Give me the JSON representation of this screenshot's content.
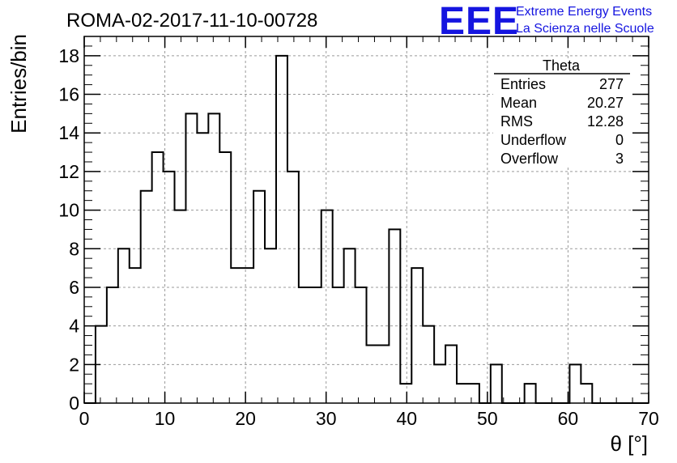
{
  "chart_data": {
    "type": "bar",
    "title": "ROMA-02-2017-11-10-00728",
    "xlabel": "θ [°]",
    "ylabel": "Entries/bin",
    "xlim": [
      0,
      70
    ],
    "ylim": [
      0,
      19
    ],
    "bin_width": 1.4,
    "x_ticks": [
      0,
      10,
      20,
      30,
      40,
      50,
      60,
      70
    ],
    "y_ticks": [
      0,
      2,
      4,
      6,
      8,
      10,
      12,
      14,
      16,
      18
    ],
    "values": [
      0,
      4,
      6,
      8,
      7,
      11,
      13,
      12,
      10,
      15,
      14,
      15,
      13,
      7,
      7,
      11,
      8,
      18,
      12,
      6,
      6,
      10,
      6,
      8,
      6,
      3,
      3,
      9,
      1,
      7,
      4,
      2,
      3,
      1,
      1,
      0,
      2,
      0,
      0,
      1,
      0,
      0,
      0,
      2,
      1,
      0,
      0,
      0,
      0,
      0
    ],
    "grid": true,
    "style": "step-histogram"
  },
  "logo": {
    "mark": "EEE",
    "line1": "Extreme Energy Events",
    "line2": "La Scienza nelle Scuole"
  },
  "stats": {
    "title": "Theta",
    "rows": [
      {
        "label": "Entries",
        "value": "277"
      },
      {
        "label": "Mean",
        "value": "20.27"
      },
      {
        "label": "RMS",
        "value": "12.28"
      },
      {
        "label": "Underflow",
        "value": "0"
      },
      {
        "label": "Overflow",
        "value": "3"
      }
    ]
  },
  "colors": {
    "line": "#000000",
    "grid": "#9a9a9a",
    "logo": "#1515e0"
  }
}
